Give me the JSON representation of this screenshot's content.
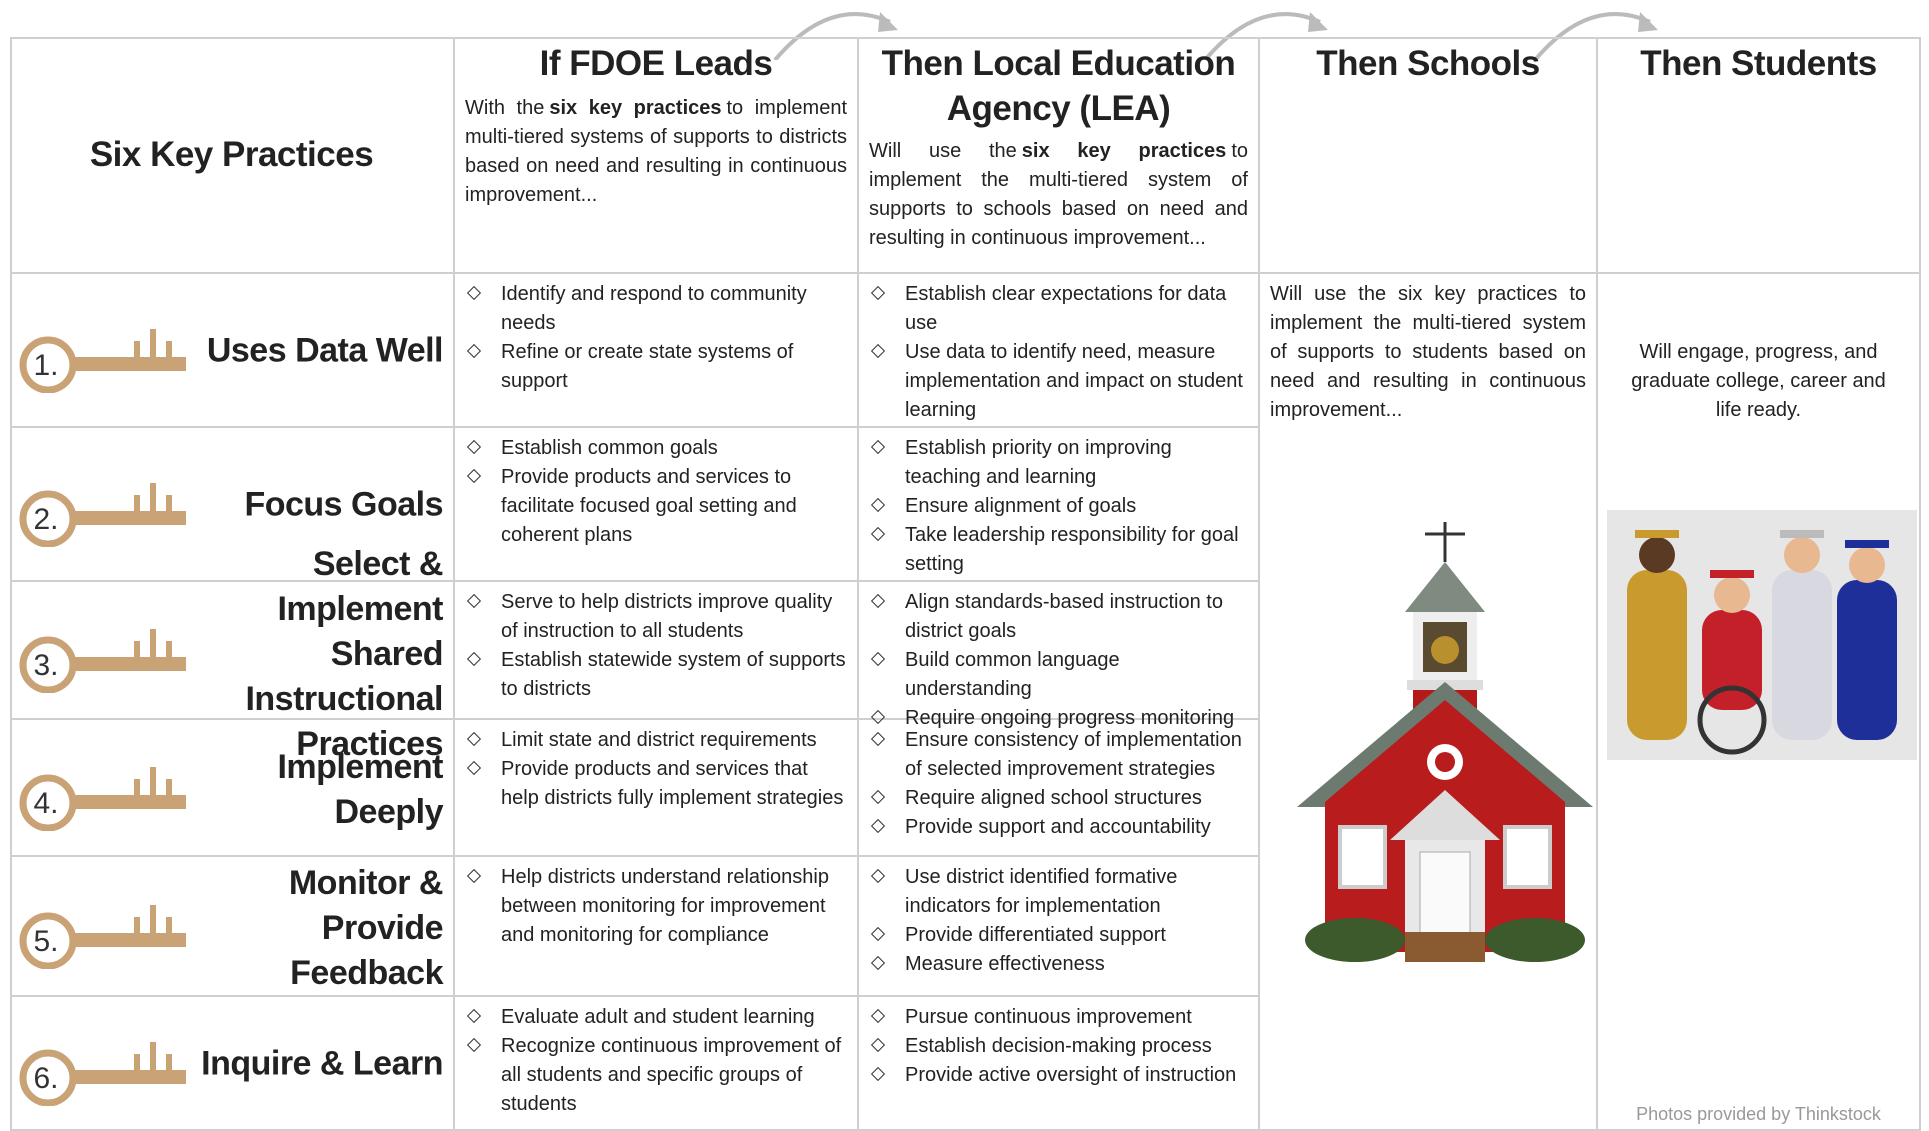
{
  "title": "Six Key Practices",
  "columns": [
    {
      "title": "If FDOE Leads",
      "intro": {
        "before": "With the",
        "bold": "six key practices",
        "after": "to implement multi-tiered systems of supports to districts based on need and resulting in continuous improvement..."
      }
    },
    {
      "title": "Then Local Education Agency (LEA)",
      "intro": {
        "before": "Will use the",
        "bold": "six key practices",
        "after": "to implement the multi-tiered system of supports to schools based on need and resulting in continuous improvement..."
      }
    },
    {
      "title": "Then Schools",
      "text": "Will use the six key practices to implement the multi-tiered system of supports to students based on need and resulting in continuous improvement..."
    },
    {
      "title": "Then Students",
      "text": "Will engage, progress, and graduate college, career and life ready."
    }
  ],
  "practices": [
    {
      "number": "1.",
      "name": "Uses Data Well",
      "fdoe": [
        "Identify and respond to community needs",
        "Refine or create state systems of support"
      ],
      "lea": [
        "Establish clear expectations for data use",
        "Use data to identify need, measure implementation and impact on student learning"
      ]
    },
    {
      "number": "2.",
      "name": "Focus Goals",
      "fdoe": [
        "Establish common goals",
        "Provide products and services to facilitate focused goal setting and coherent plans"
      ],
      "lea": [
        "Establish priority on improving teaching and learning",
        "Ensure alignment of goals",
        "Take leadership responsibility for goal setting"
      ]
    },
    {
      "number": "3.",
      "name": "Select & Implement Shared Instructional Practices",
      "fdoe": [
        "Serve to help districts improve quality of instruction to all students",
        "Establish statewide system of supports to districts"
      ],
      "lea": [
        "Align standards-based instruction to district goals",
        "Build common language understanding",
        "Require ongoing progress monitoring"
      ]
    },
    {
      "number": "4.",
      "name": "Implement Deeply",
      "fdoe": [
        "Limit state and district requirements",
        "Provide products and services that help districts fully implement strategies"
      ],
      "lea": [
        "Ensure consistency of implementation of selected improvement strategies",
        "Require aligned school structures",
        "Provide support and accountability"
      ]
    },
    {
      "number": "5.",
      "name": "Monitor & Provide Feedback",
      "fdoe": [
        "Help districts understand relationship between monitoring for improvement and monitoring for compliance"
      ],
      "lea": [
        "Use district identified formative indicators for implementation",
        "Provide differentiated support",
        "Measure effectiveness"
      ]
    },
    {
      "number": "6.",
      "name": "Inquire & Learn",
      "fdoe": [
        "Evaluate adult and student learning",
        "Recognize continuous improvement of all students and specific groups of students"
      ],
      "lea": [
        "Pursue continuous improvement",
        "Establish decision-making process",
        "Provide active oversight of instruction"
      ]
    }
  ],
  "credit": "Photos provided by Thinkstock"
}
